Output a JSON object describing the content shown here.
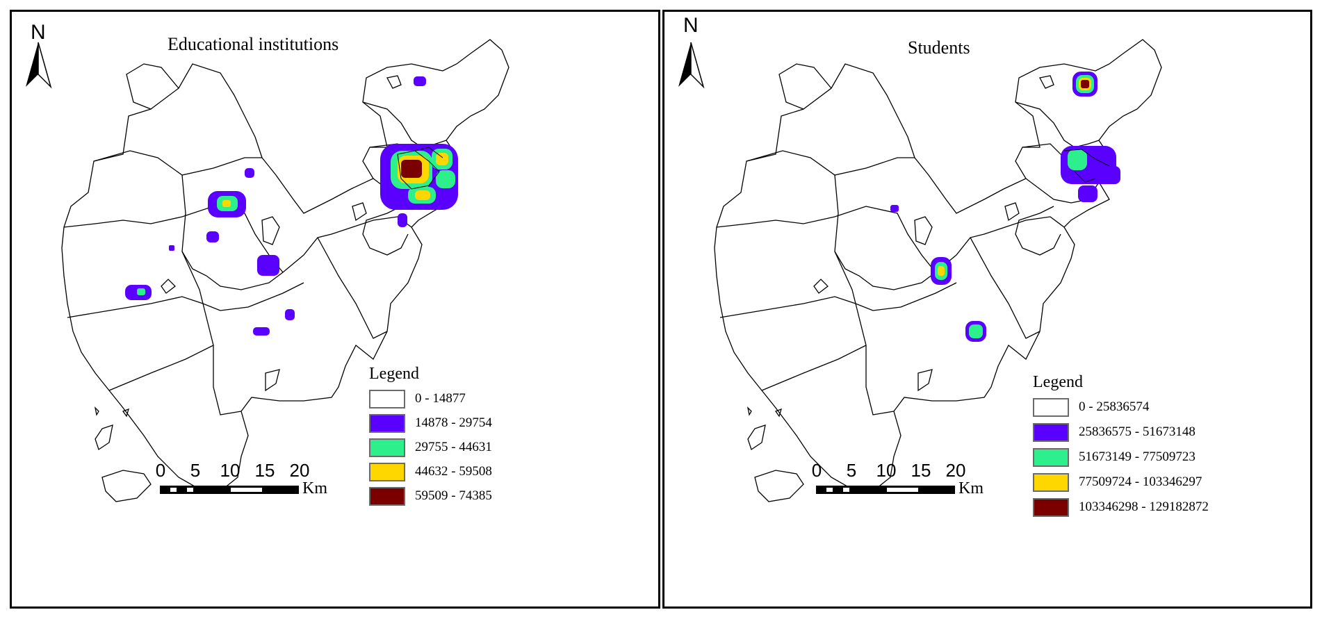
{
  "colors": {
    "c0": "#ffffff",
    "c1": "#5a00ff",
    "c2": "#2df08c",
    "c3": "#ffd700",
    "c4": "#7a0000"
  },
  "panels": [
    {
      "title": "Educational institutions",
      "legend": {
        "title": "Legend",
        "items": [
          {
            "label": "0 - 14877",
            "color_key": "c0"
          },
          {
            "label": "14878 - 29754",
            "color_key": "c1"
          },
          {
            "label": "29755 - 44631",
            "color_key": "c2"
          },
          {
            "label": "44632 - 59508",
            "color_key": "c3"
          },
          {
            "label": "59509 - 74385",
            "color_key": "c4"
          }
        ]
      },
      "north": "N",
      "scale": {
        "ticks": [
          "0",
          "5",
          "10",
          "15",
          "20"
        ],
        "unit": "Km"
      }
    },
    {
      "title": "Students",
      "legend": {
        "title": "Legend",
        "items": [
          {
            "label": "0 - 25836574",
            "color_key": "c0"
          },
          {
            "label": "25836575 - 51673148",
            "color_key": "c1"
          },
          {
            "label": "51673149 - 77509723",
            "color_key": "c2"
          },
          {
            "label": "77509724 - 103346297",
            "color_key": "c3"
          },
          {
            "label": "103346298 - 129182872",
            "color_key": "c4"
          }
        ]
      },
      "north": "N",
      "scale": {
        "ticks": [
          "0",
          "5",
          "10",
          "15",
          "20"
        ],
        "unit": "Km"
      }
    }
  ]
}
